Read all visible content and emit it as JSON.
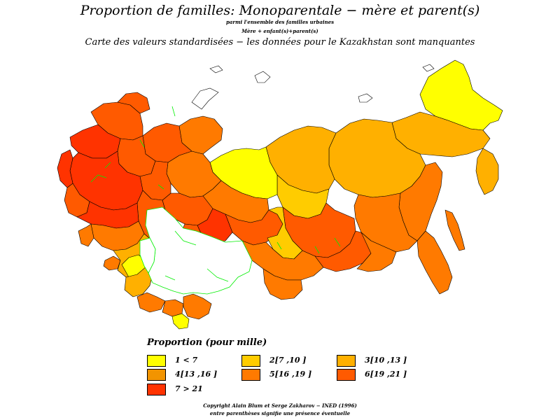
{
  "title": "Proportion de familles: Monoparentale − mère et parent(s)",
  "subtitle_1": "parmi l'ensemble des familles urbaines",
  "subtitle_2": "Mère + enfant(s)+parent(s)",
  "subtitle_3": "Carte des valeurs standardisées − les données pour le Kazakhstan sont manquantes",
  "legend": {
    "title": "Proportion (pour mille)",
    "items": [
      {
        "label": "1 < 7",
        "color": "#ffff00"
      },
      {
        "label": "2[7 ,10 ]",
        "color": "#ffcc00"
      },
      {
        "label": "3[10 ,13 ]",
        "color": "#ffb000"
      },
      {
        "label": "4[13 ,16 ]",
        "color": "#f29400"
      },
      {
        "label": "5[16 ,19 ]",
        "color": "#ff7a00"
      },
      {
        "label": "6[19 ,21 ]",
        "color": "#ff5a00"
      },
      {
        "label": "7 > 21",
        "color": "#ff3300"
      }
    ]
  },
  "copyright_1": "Copyright Alain Blum et Serge Zakharov − INED (1996)",
  "copyright_2": "entre parenthèses signifie une présence éventuelle",
  "colors": {
    "missing": "#ffffff",
    "boundary_green": "#00ee00",
    "border_black": "#000000"
  }
}
